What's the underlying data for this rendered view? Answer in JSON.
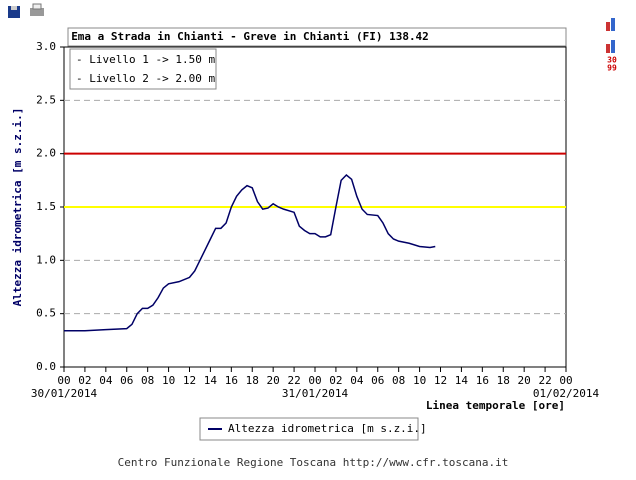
{
  "chart_data": {
    "type": "line",
    "title": "Ema a Strada in Chianti - Greve in Chianti (FI) 138.42",
    "y_label": "Altezza idrometrica [m s.z.i.]",
    "x_label": "Linea temporale [ore]",
    "footer": "Centro Funzionale Regione Toscana http://www.cfr.toscana.it",
    "side_icon_text": [
      "30",
      "99"
    ],
    "thresholds": [
      {
        "label": "- Livello 1 -> 1.50 m",
        "value": 1.5,
        "color": "#ffff00"
      },
      {
        "label": "- Livello 2 -> 2.00 m",
        "value": 2.0,
        "color": "#cc0000"
      }
    ],
    "xlim": [
      0,
      48
    ],
    "ylim": [
      0,
      3
    ],
    "xticks": [
      {
        "value": 0,
        "label": "00"
      },
      {
        "value": 2,
        "label": "02"
      },
      {
        "value": 4,
        "label": "04"
      },
      {
        "value": 6,
        "label": "06"
      },
      {
        "value": 8,
        "label": "08"
      },
      {
        "value": 10,
        "label": "10"
      },
      {
        "value": 12,
        "label": "12"
      },
      {
        "value": 14,
        "label": "14"
      },
      {
        "value": 16,
        "label": "16"
      },
      {
        "value": 18,
        "label": "18"
      },
      {
        "value": 20,
        "label": "20"
      },
      {
        "value": 22,
        "label": "22"
      },
      {
        "value": 24,
        "label": "00"
      },
      {
        "value": 26,
        "label": "02"
      },
      {
        "value": 28,
        "label": "04"
      },
      {
        "value": 30,
        "label": "06"
      },
      {
        "value": 32,
        "label": "08"
      },
      {
        "value": 34,
        "label": "10"
      },
      {
        "value": 36,
        "label": "12"
      },
      {
        "value": 38,
        "label": "14"
      },
      {
        "value": 40,
        "label": "16"
      },
      {
        "value": 42,
        "label": "18"
      },
      {
        "value": 44,
        "label": "20"
      },
      {
        "value": 46,
        "label": "22"
      },
      {
        "value": 48,
        "label": "00"
      }
    ],
    "date_labels": [
      {
        "value": 0,
        "label": "30/01/2014"
      },
      {
        "value": 24,
        "label": "31/01/2014"
      },
      {
        "value": 48,
        "label": "01/02/2014"
      }
    ],
    "yticks": [
      {
        "value": 0,
        "label": "0.0"
      },
      {
        "value": 0.5,
        "label": "0.5"
      },
      {
        "value": 1,
        "label": "1.0"
      },
      {
        "value": 1.5,
        "label": "1.5"
      },
      {
        "value": 2,
        "label": "2.0"
      },
      {
        "value": 2.5,
        "label": "2.5"
      },
      {
        "value": 3,
        "label": "3.0"
      }
    ],
    "grid": true,
    "x": [
      0,
      2,
      4,
      6,
      6.5,
      7,
      7.5,
      8,
      8.5,
      9,
      9.5,
      10,
      11,
      12,
      12.5,
      13,
      13.5,
      14,
      14.5,
      15,
      15.5,
      16,
      16.5,
      17,
      17.5,
      18,
      18.5,
      19,
      19.5,
      20,
      20.5,
      21,
      22,
      22.5,
      23,
      23.5,
      24,
      24.5,
      25,
      25.5,
      26,
      26.5,
      27,
      27.5,
      28,
      28.5,
      29,
      30,
      30.5,
      31,
      31.5,
      32,
      33,
      34,
      35,
      35.5
    ],
    "series": [
      {
        "name": "Altezza idrometrica [m s.z.i.]",
        "color": "#000066",
        "values": [
          0.34,
          0.34,
          0.35,
          0.36,
          0.4,
          0.5,
          0.55,
          0.55,
          0.58,
          0.65,
          0.74,
          0.78,
          0.8,
          0.84,
          0.9,
          1.0,
          1.1,
          1.2,
          1.3,
          1.3,
          1.35,
          1.5,
          1.6,
          1.66,
          1.7,
          1.68,
          1.55,
          1.48,
          1.49,
          1.53,
          1.5,
          1.48,
          1.45,
          1.32,
          1.28,
          1.25,
          1.25,
          1.22,
          1.22,
          1.24,
          1.5,
          1.75,
          1.8,
          1.76,
          1.6,
          1.48,
          1.43,
          1.42,
          1.35,
          1.25,
          1.2,
          1.18,
          1.16,
          1.13,
          1.12,
          1.13
        ]
      }
    ]
  }
}
